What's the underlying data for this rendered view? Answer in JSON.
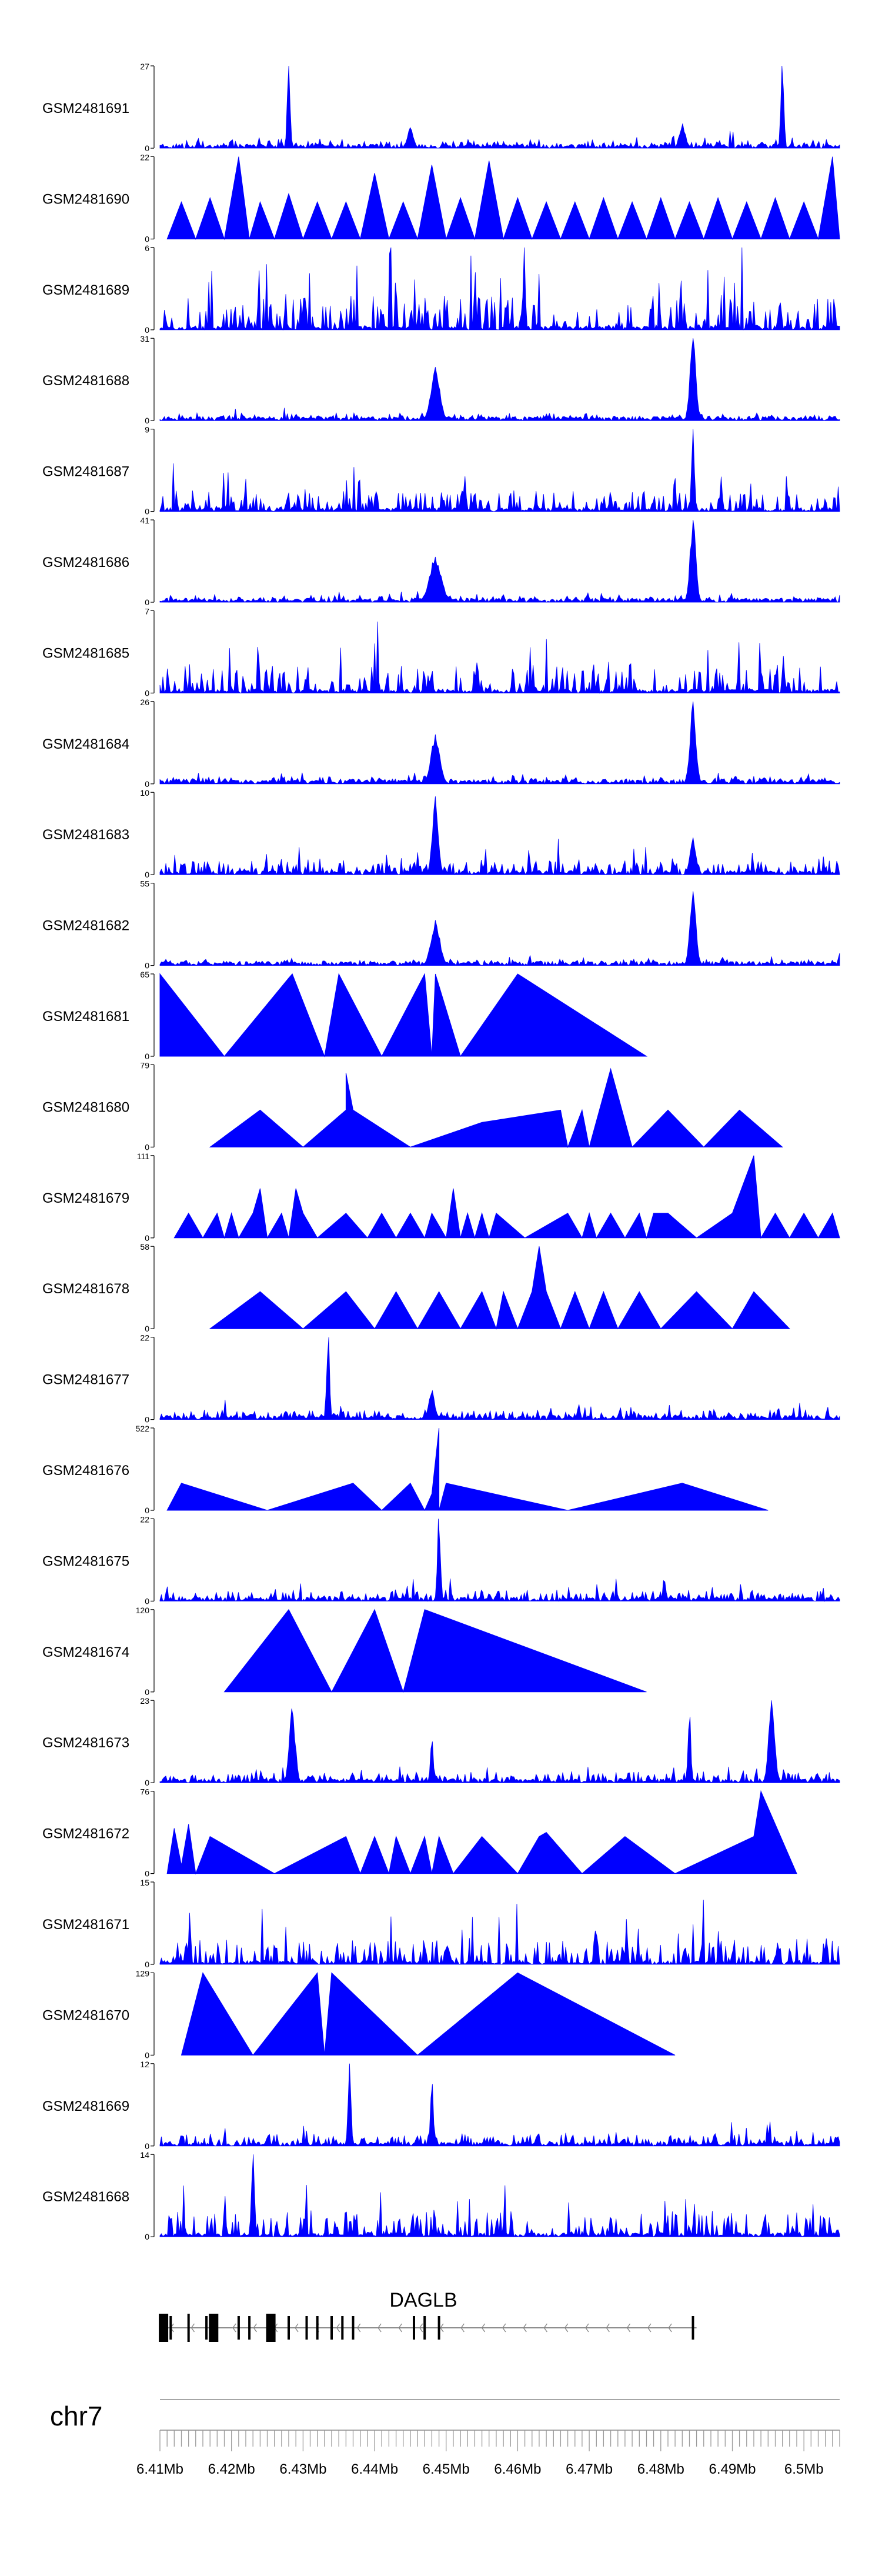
{
  "chart_data": {
    "type": "area",
    "track_color": "#0000ff",
    "chromosome": "chr7",
    "x_range_mb": [
      6.41,
      6.505
    ],
    "x_ticks": [
      "6.41Mb",
      "6.42Mb",
      "6.43Mb",
      "6.44Mb",
      "6.45Mb",
      "6.46Mb",
      "6.47Mb",
      "6.48Mb",
      "6.49Mb",
      "6.5Mb"
    ],
    "x_tick_values_mb": [
      6.41,
      6.42,
      6.43,
      6.44,
      6.45,
      6.46,
      6.47,
      6.48,
      6.49,
      6.5
    ],
    "tracks": [
      {
        "name": "GSM2481691",
        "ymax": "27",
        "kind": "dense",
        "seed": 11,
        "base": 0.08,
        "spikes": [
          [
            6.428,
            1.0,
            1
          ],
          [
            6.497,
            1.0,
            1
          ],
          [
            6.445,
            0.25,
            2
          ],
          [
            6.483,
            0.3,
            2
          ]
        ]
      },
      {
        "name": "GSM2481690",
        "ymax": "22",
        "kind": "tri",
        "points": [
          [
            6.411,
            0
          ],
          [
            6.413,
            0.45
          ],
          [
            6.415,
            0
          ],
          [
            6.417,
            0.5
          ],
          [
            6.419,
            0
          ],
          [
            6.421,
            1.0
          ],
          [
            6.4225,
            0
          ],
          [
            6.424,
            0.45
          ],
          [
            6.426,
            0
          ],
          [
            6.428,
            0.55
          ],
          [
            6.43,
            0
          ],
          [
            6.432,
            0.45
          ],
          [
            6.434,
            0
          ],
          [
            6.436,
            0.45
          ],
          [
            6.438,
            0
          ],
          [
            6.44,
            0.8
          ],
          [
            6.442,
            0
          ],
          [
            6.444,
            0.45
          ],
          [
            6.446,
            0
          ],
          [
            6.448,
            0.9
          ],
          [
            6.45,
            0
          ],
          [
            6.452,
            0.5
          ],
          [
            6.454,
            0
          ],
          [
            6.456,
            0.95
          ],
          [
            6.458,
            0
          ],
          [
            6.46,
            0.5
          ],
          [
            6.462,
            0
          ],
          [
            6.464,
            0.45
          ],
          [
            6.466,
            0
          ],
          [
            6.468,
            0.45
          ],
          [
            6.47,
            0
          ],
          [
            6.472,
            0.5
          ],
          [
            6.474,
            0
          ],
          [
            6.476,
            0.45
          ],
          [
            6.478,
            0
          ],
          [
            6.48,
            0.5
          ],
          [
            6.482,
            0
          ],
          [
            6.484,
            0.45
          ],
          [
            6.486,
            0
          ],
          [
            6.488,
            0.5
          ],
          [
            6.49,
            0
          ],
          [
            6.492,
            0.45
          ],
          [
            6.494,
            0
          ],
          [
            6.496,
            0.5
          ],
          [
            6.498,
            0
          ],
          [
            6.5,
            0.45
          ],
          [
            6.502,
            0
          ],
          [
            6.504,
            1.0
          ],
          [
            6.505,
            0
          ]
        ]
      },
      {
        "name": "GSM2481689",
        "ymax": "6",
        "kind": "dense",
        "seed": 23,
        "base": 0.5,
        "spikes": []
      },
      {
        "name": "GSM2481688",
        "ymax": "31",
        "kind": "dense",
        "seed": 31,
        "base": 0.06,
        "spikes": [
          [
            6.4485,
            0.65,
            3
          ],
          [
            6.4845,
            1.0,
            2
          ]
        ]
      },
      {
        "name": "GSM2481687",
        "ymax": "9",
        "kind": "dense",
        "seed": 37,
        "base": 0.28,
        "spikes": [
          [
            6.4845,
            1.0,
            1
          ]
        ]
      },
      {
        "name": "GSM2481686",
        "ymax": "41",
        "kind": "dense",
        "seed": 41,
        "base": 0.06,
        "spikes": [
          [
            6.4485,
            0.55,
            4
          ],
          [
            6.4845,
            1.0,
            2
          ]
        ]
      },
      {
        "name": "GSM2481685",
        "ymax": "7",
        "kind": "dense",
        "seed": 43,
        "base": 0.4,
        "spikes": []
      },
      {
        "name": "GSM2481684",
        "ymax": "26",
        "kind": "dense",
        "seed": 47,
        "base": 0.06,
        "spikes": [
          [
            6.4485,
            0.6,
            3
          ],
          [
            6.4845,
            1.0,
            2
          ]
        ]
      },
      {
        "name": "GSM2481683",
        "ymax": "10",
        "kind": "dense",
        "seed": 53,
        "base": 0.2,
        "spikes": [
          [
            6.4485,
            0.95,
            2
          ],
          [
            6.4845,
            0.45,
            2
          ]
        ]
      },
      {
        "name": "GSM2481682",
        "ymax": "55",
        "kind": "dense",
        "seed": 59,
        "base": 0.04,
        "spikes": [
          [
            6.4485,
            0.55,
            3
          ],
          [
            6.4845,
            0.9,
            2
          ],
          [
            6.505,
            0.15,
            1
          ]
        ]
      },
      {
        "name": "GSM2481681",
        "ymax": "65",
        "kind": "tri",
        "points": [
          [
            6.41,
            1.0
          ],
          [
            6.419,
            0
          ],
          [
            6.428,
            0.95
          ],
          [
            6.4285,
            1.0
          ],
          [
            6.433,
            0
          ],
          [
            6.435,
            1.0
          ],
          [
            6.441,
            0
          ],
          [
            6.447,
            1.0
          ],
          [
            6.448,
            0
          ],
          [
            6.4485,
            1.0
          ],
          [
            6.452,
            0
          ],
          [
            6.46,
            1.0
          ],
          [
            6.478,
            0
          ]
        ]
      },
      {
        "name": "GSM2481680",
        "ymax": "79",
        "kind": "tri",
        "points": [
          [
            6.417,
            0
          ],
          [
            6.424,
            0.45
          ],
          [
            6.43,
            0
          ],
          [
            6.436,
            0.45
          ],
          [
            6.436,
            0.9
          ],
          [
            6.437,
            0.45
          ],
          [
            6.445,
            0
          ],
          [
            6.455,
            0.3
          ],
          [
            6.466,
            0.45
          ],
          [
            6.467,
            0
          ],
          [
            6.469,
            0.45
          ],
          [
            6.47,
            0
          ],
          [
            6.473,
            0.95
          ],
          [
            6.476,
            0
          ],
          [
            6.481,
            0.45
          ],
          [
            6.486,
            0
          ],
          [
            6.491,
            0.45
          ],
          [
            6.497,
            0
          ]
        ]
      },
      {
        "name": "GSM2481679",
        "ymax": "111",
        "kind": "tri",
        "points": [
          [
            6.412,
            0
          ],
          [
            6.414,
            0.3
          ],
          [
            6.416,
            0
          ],
          [
            6.418,
            0.3
          ],
          [
            6.419,
            0
          ],
          [
            6.42,
            0.3
          ],
          [
            6.421,
            0
          ],
          [
            6.423,
            0.3
          ],
          [
            6.424,
            0.6
          ],
          [
            6.425,
            0
          ],
          [
            6.427,
            0.3
          ],
          [
            6.428,
            0
          ],
          [
            6.429,
            0.6
          ],
          [
            6.43,
            0.3
          ],
          [
            6.432,
            0
          ],
          [
            6.436,
            0.3
          ],
          [
            6.439,
            0
          ],
          [
            6.441,
            0.3
          ],
          [
            6.443,
            0
          ],
          [
            6.445,
            0.3
          ],
          [
            6.447,
            0
          ],
          [
            6.448,
            0.3
          ],
          [
            6.45,
            0
          ],
          [
            6.451,
            0.6
          ],
          [
            6.452,
            0
          ],
          [
            6.453,
            0.3
          ],
          [
            6.454,
            0
          ],
          [
            6.455,
            0.3
          ],
          [
            6.456,
            0
          ],
          [
            6.457,
            0.3
          ],
          [
            6.461,
            0
          ],
          [
            6.467,
            0.3
          ],
          [
            6.469,
            0
          ],
          [
            6.47,
            0.3
          ],
          [
            6.471,
            0
          ],
          [
            6.473,
            0.3
          ],
          [
            6.475,
            0
          ],
          [
            6.477,
            0.3
          ],
          [
            6.478,
            0
          ],
          [
            6.479,
            0.3
          ],
          [
            6.481,
            0.3
          ],
          [
            6.485,
            0
          ],
          [
            6.49,
            0.3
          ],
          [
            6.493,
            1.0
          ],
          [
            6.494,
            0
          ],
          [
            6.496,
            0.3
          ],
          [
            6.498,
            0
          ],
          [
            6.5,
            0.3
          ],
          [
            6.502,
            0
          ],
          [
            6.504,
            0.3
          ],
          [
            6.505,
            0
          ]
        ]
      },
      {
        "name": "GSM2481678",
        "ymax": "58",
        "kind": "tri",
        "points": [
          [
            6.417,
            0
          ],
          [
            6.424,
            0.45
          ],
          [
            6.43,
            0
          ],
          [
            6.436,
            0.45
          ],
          [
            6.44,
            0
          ],
          [
            6.443,
            0.45
          ],
          [
            6.446,
            0
          ],
          [
            6.449,
            0.45
          ],
          [
            6.452,
            0
          ],
          [
            6.455,
            0.45
          ],
          [
            6.457,
            0
          ],
          [
            6.458,
            0.45
          ],
          [
            6.46,
            0
          ],
          [
            6.462,
            0.45
          ],
          [
            6.463,
            1.0
          ],
          [
            6.464,
            0.45
          ],
          [
            6.466,
            0
          ],
          [
            6.468,
            0.45
          ],
          [
            6.47,
            0
          ],
          [
            6.472,
            0.45
          ],
          [
            6.474,
            0
          ],
          [
            6.477,
            0.45
          ],
          [
            6.48,
            0
          ],
          [
            6.485,
            0.45
          ],
          [
            6.49,
            0
          ],
          [
            6.493,
            0.45
          ],
          [
            6.498,
            0
          ]
        ]
      },
      {
        "name": "GSM2481677",
        "ymax": "22",
        "kind": "dense",
        "seed": 61,
        "base": 0.1,
        "spikes": [
          [
            6.4335,
            1.0,
            1
          ],
          [
            6.448,
            0.35,
            2
          ]
        ]
      },
      {
        "name": "GSM2481676",
        "ymax": "522",
        "kind": "tri",
        "points": [
          [
            6.411,
            0
          ],
          [
            6.413,
            0.33
          ],
          [
            6.425,
            0
          ],
          [
            6.437,
            0.33
          ],
          [
            6.441,
            0
          ],
          [
            6.445,
            0.33
          ],
          [
            6.447,
            0
          ],
          [
            6.448,
            0.2
          ],
          [
            6.449,
            1.0
          ],
          [
            6.449,
            0
          ],
          [
            6.45,
            0.33
          ],
          [
            6.467,
            0
          ],
          [
            6.483,
            0.33
          ],
          [
            6.495,
            0
          ]
        ]
      },
      {
        "name": "GSM2481675",
        "ymax": "22",
        "kind": "dense",
        "seed": 67,
        "base": 0.12,
        "spikes": [
          [
            6.449,
            1.0,
            1
          ]
        ]
      },
      {
        "name": "GSM2481674",
        "ymax": "120",
        "kind": "tri",
        "points": [
          [
            6.419,
            0
          ],
          [
            6.428,
            1.0
          ],
          [
            6.434,
            0
          ],
          [
            6.44,
            1.0
          ],
          [
            6.444,
            0
          ],
          [
            6.447,
            1.0
          ],
          [
            6.478,
            0
          ]
        ]
      },
      {
        "name": "GSM2481673",
        "ymax": "23",
        "kind": "dense",
        "seed": 71,
        "base": 0.12,
        "spikes": [
          [
            6.4285,
            0.9,
            2
          ],
          [
            6.4955,
            1.0,
            2
          ],
          [
            6.484,
            0.8,
            1
          ],
          [
            6.448,
            0.5,
            1
          ]
        ]
      },
      {
        "name": "GSM2481672",
        "ymax": "76",
        "kind": "tri",
        "points": [
          [
            6.411,
            0
          ],
          [
            6.412,
            0.55
          ],
          [
            6.413,
            0.1
          ],
          [
            6.414,
            0.6
          ],
          [
            6.415,
            0
          ],
          [
            6.417,
            0.45
          ],
          [
            6.426,
            0
          ],
          [
            6.436,
            0.45
          ],
          [
            6.438,
            0
          ],
          [
            6.44,
            0.45
          ],
          [
            6.442,
            0
          ],
          [
            6.443,
            0.45
          ],
          [
            6.445,
            0
          ],
          [
            6.447,
            0.45
          ],
          [
            6.448,
            0
          ],
          [
            6.449,
            0.45
          ],
          [
            6.451,
            0
          ],
          [
            6.455,
            0.45
          ],
          [
            6.46,
            0
          ],
          [
            6.463,
            0.45
          ],
          [
            6.464,
            0.5
          ],
          [
            6.469,
            0
          ],
          [
            6.475,
            0.45
          ],
          [
            6.482,
            0
          ],
          [
            6.493,
            0.45
          ],
          [
            6.494,
            1.0
          ],
          [
            6.499,
            0
          ]
        ]
      },
      {
        "name": "GSM2481671",
        "ymax": "15",
        "kind": "dense",
        "seed": 73,
        "base": 0.35,
        "spikes": []
      },
      {
        "name": "GSM2481670",
        "ymax": "129",
        "kind": "tri",
        "points": [
          [
            6.413,
            0
          ],
          [
            6.416,
            1.0
          ],
          [
            6.423,
            0
          ],
          [
            6.432,
            1.0
          ],
          [
            6.433,
            0
          ],
          [
            6.434,
            1.0
          ],
          [
            6.446,
            0
          ],
          [
            6.46,
            1.0
          ],
          [
            6.482,
            0
          ]
        ]
      },
      {
        "name": "GSM2481669",
        "ymax": "12",
        "kind": "dense",
        "seed": 79,
        "base": 0.15,
        "spikes": [
          [
            6.4365,
            1.0,
            1
          ],
          [
            6.448,
            0.75,
            1
          ]
        ]
      },
      {
        "name": "GSM2481668",
        "ymax": "14",
        "kind": "dense",
        "seed": 83,
        "base": 0.35,
        "spikes": [
          [
            6.423,
            1.0,
            1
          ]
        ]
      }
    ],
    "gene": {
      "name": "DAGLB",
      "start_mb": 6.41,
      "end_mb": 6.485,
      "strand": "-",
      "exons_mb": [
        6.4105,
        6.4115,
        6.414,
        6.4165,
        6.4175,
        6.421,
        6.4225,
        6.4255,
        6.428,
        6.4305,
        6.432,
        6.434,
        6.4355,
        6.437,
        6.4455,
        6.447,
        6.449,
        6.4845
      ]
    }
  }
}
